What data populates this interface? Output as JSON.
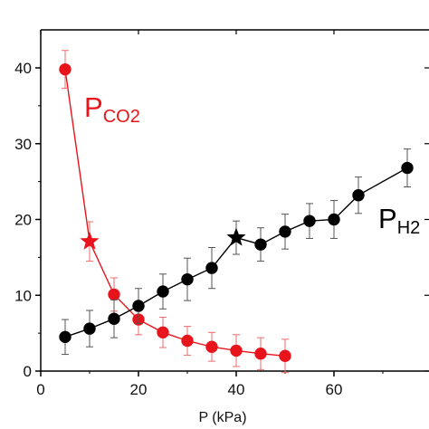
{
  "chart_data": {
    "type": "scatter",
    "title": "",
    "xlabel": "P (kPa)",
    "ylabel": "",
    "xlim": [
      0,
      80
    ],
    "ylim": [
      0,
      45
    ],
    "x_ticks": [
      0,
      20,
      40,
      60
    ],
    "y_ticks": [
      0,
      10,
      20,
      30,
      40
    ],
    "grid": false,
    "legend": "none",
    "series": [
      {
        "name": "PCO2",
        "label_main": "P",
        "label_sub": "CO2",
        "color": "#e8141c",
        "marker": "circle",
        "line": "solid",
        "points": [
          {
            "x": 5,
            "y": 39.8,
            "err": 2.5
          },
          {
            "x": 15,
            "y": 10.1,
            "err": 2.2
          },
          {
            "x": 20,
            "y": 6.8,
            "err": 2.0
          },
          {
            "x": 25,
            "y": 5.1,
            "err": 2.0
          },
          {
            "x": 30,
            "y": 4.0,
            "err": 1.9
          },
          {
            "x": 35,
            "y": 3.2,
            "err": 1.9
          },
          {
            "x": 40,
            "y": 2.7,
            "err": 2.1
          },
          {
            "x": 45,
            "y": 2.3,
            "err": 2.1
          },
          {
            "x": 50,
            "y": 2.0,
            "err": 2.2
          }
        ],
        "star": {
          "x": 10,
          "y": 17.1,
          "err": 2.6
        }
      },
      {
        "name": "PH2",
        "label_main": "P",
        "label_sub": "H2",
        "color": "#000000",
        "marker": "circle",
        "line": "solid",
        "points": [
          {
            "x": 5,
            "y": 4.5,
            "err": 2.3
          },
          {
            "x": 10,
            "y": 5.6,
            "err": 2.4
          },
          {
            "x": 15,
            "y": 6.9,
            "err": 2.5
          },
          {
            "x": 20,
            "y": 8.6,
            "err": 2.3
          },
          {
            "x": 25,
            "y": 10.5,
            "err": 2.3
          },
          {
            "x": 30,
            "y": 12.1,
            "err": 2.8
          },
          {
            "x": 35,
            "y": 13.6,
            "err": 2.7
          },
          {
            "x": 45,
            "y": 16.7,
            "err": 2.2
          },
          {
            "x": 50,
            "y": 18.4,
            "err": 2.3
          },
          {
            "x": 55,
            "y": 19.8,
            "err": 2.3
          },
          {
            "x": 60,
            "y": 20.0,
            "err": 2.5
          },
          {
            "x": 65,
            "y": 23.2,
            "err": 2.4
          },
          {
            "x": 75,
            "y": 26.8,
            "err": 2.5
          }
        ],
        "star": {
          "x": 40,
          "y": 17.6,
          "err": 2.2
        }
      }
    ]
  }
}
